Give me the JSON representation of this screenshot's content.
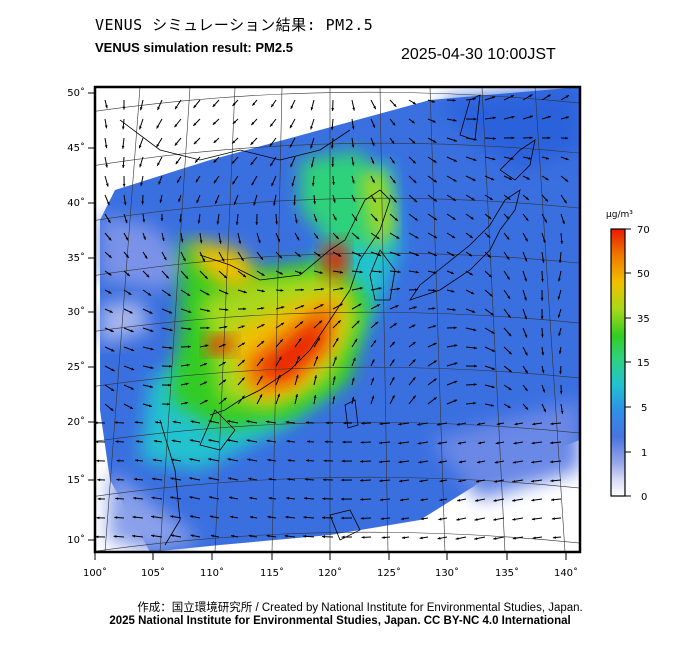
{
  "title_jp": "VENUS シミュレーション結果: PM2.5",
  "title_en": "VENUS simulation result: PM2.5",
  "timestamp": "2025-04-30 10:00JST",
  "lat_labels": [
    "50˚",
    "45˚",
    "40˚",
    "35˚",
    "30˚",
    "25˚",
    "20˚",
    "15˚",
    "10˚"
  ],
  "lon_labels": [
    "100˚",
    "105˚",
    "110˚",
    "115˚",
    "120˚",
    "125˚",
    "130˚",
    "135˚",
    "140˚"
  ],
  "colorbar": {
    "unit": "μg/m³",
    "ticks": [
      "70",
      "50",
      "35",
      "15",
      "5",
      "1",
      "0"
    ],
    "colors": [
      "#ffffff",
      "#d8dcf4",
      "#9aa9ea",
      "#4a73e0",
      "#2f8fe6",
      "#22c3cf",
      "#2fd27a",
      "#33cc22",
      "#a8d81a",
      "#f0c000",
      "#f07a00",
      "#e81a00"
    ]
  },
  "credit_line1": "作成：国立環境研究所 / Created by National Institute for Environmental Studies, Japan.",
  "credit_line2": "2025 National Institute for Environmental Studies, Japan. CC BY-NC 4.0 International"
}
